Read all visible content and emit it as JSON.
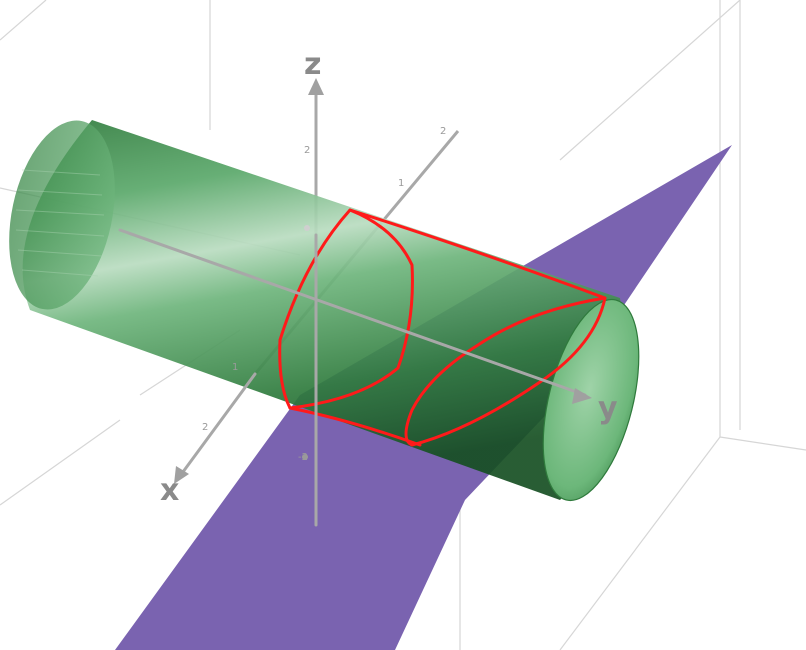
{
  "axes": {
    "x_label": "x",
    "y_label": "y",
    "z_label": "z",
    "z_tick_2": "2",
    "z_tick_m2": "-2",
    "x_tick_1": "1",
    "x_tick_2": "2",
    "y_tick_1": "1",
    "y_tick_2": "2"
  },
  "colors": {
    "cylinder": "#4f9f5f",
    "plane": "#7a63b0",
    "outline": "#ff1a1a",
    "axis": "#a0a0a0",
    "box": "#d9d9d9"
  }
}
